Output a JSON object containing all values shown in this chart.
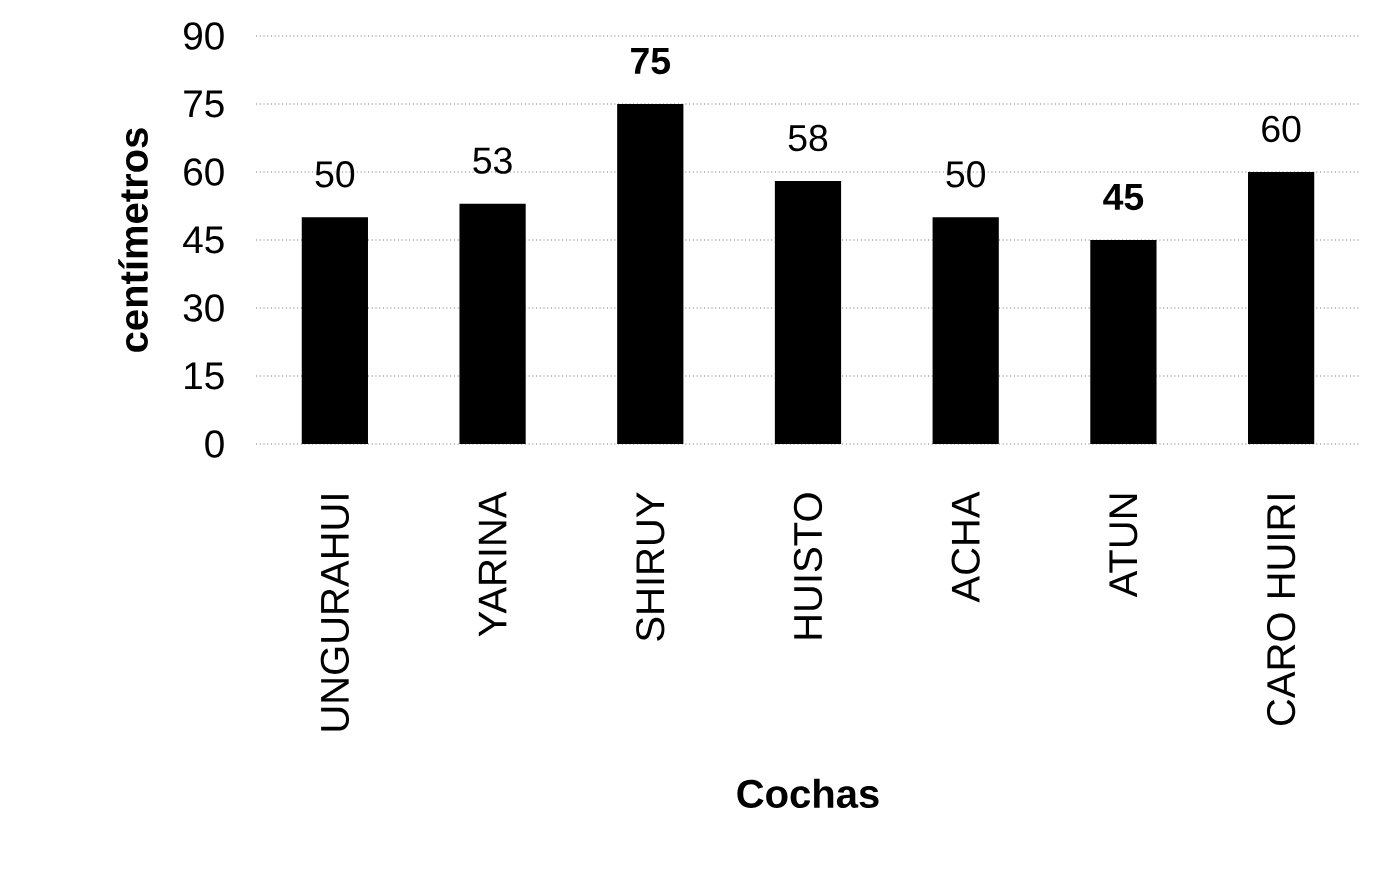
{
  "chart_data": {
    "type": "bar",
    "xlabel": "Cochas",
    "ylabel": "centímetros",
    "categories": [
      "UNGURAHUI",
      "YARINA",
      "SHIRUY",
      "HUISTO",
      "ACHA",
      "ATUN",
      "CARO HUIRI"
    ],
    "values": [
      50,
      53,
      75,
      58,
      50,
      45,
      60
    ],
    "value_labels": [
      "50",
      "53",
      "**75**",
      "58",
      "50",
      "**45**",
      "60"
    ],
    "color": "#000000",
    "ylim": [
      0,
      90
    ],
    "yticks": [
      0,
      15,
      30,
      45,
      60,
      75,
      90
    ],
    "grid": "y"
  }
}
